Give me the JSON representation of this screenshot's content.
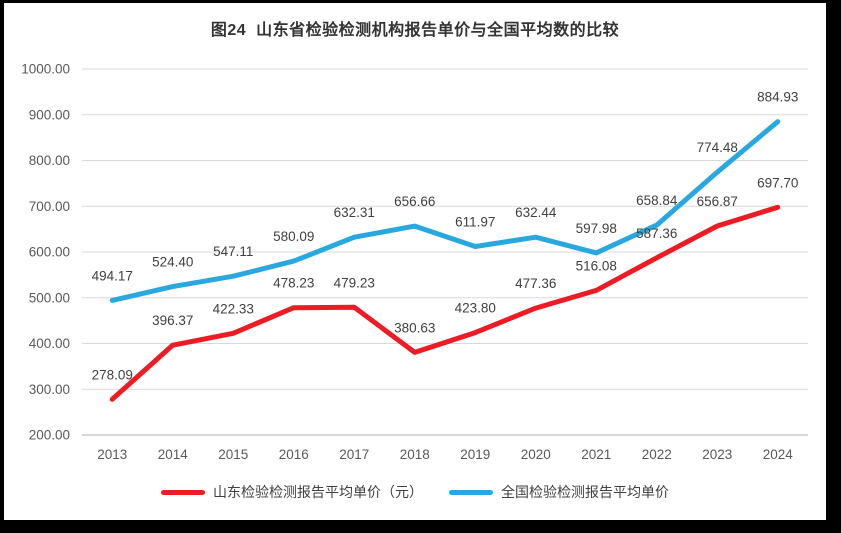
{
  "page": {
    "background_color": "#000000",
    "panel_color": "#ffffff"
  },
  "chart_data": {
    "type": "line",
    "title": "图24  山东省检验检测机构报告单价与全国平均数的比较",
    "categories": [
      "2013",
      "2014",
      "2015",
      "2016",
      "2017",
      "2018",
      "2019",
      "2020",
      "2021",
      "2022",
      "2023",
      "2024"
    ],
    "series": [
      {
        "name": "山东检验检测报告平均单价（元）",
        "color": "#ed1c24",
        "values": [
          278.09,
          396.37,
          422.33,
          478.23,
          479.23,
          380.63,
          423.8,
          477.36,
          516.08,
          587.36,
          656.87,
          697.7
        ]
      },
      {
        "name": "全国检验检测报告平均单价",
        "color": "#29a8e0",
        "values": [
          494.17,
          524.4,
          547.11,
          580.09,
          632.31,
          656.66,
          611.97,
          632.44,
          597.98,
          658.84,
          774.48,
          884.93
        ]
      }
    ],
    "xlabel": "",
    "ylabel": "",
    "ylim": [
      200,
      1000
    ],
    "ytick_step": 100,
    "ytick_labels": [
      "200.00",
      "300.00",
      "400.00",
      "500.00",
      "600.00",
      "700.00",
      "800.00",
      "900.00",
      "1000.00"
    ],
    "grid": true,
    "data_labels": true,
    "legend_position": "bottom",
    "colors": {
      "grid": "#d9d9d9",
      "axis": "#bfbfbf",
      "ticks": "#595959",
      "data_labels": "#404040"
    }
  }
}
